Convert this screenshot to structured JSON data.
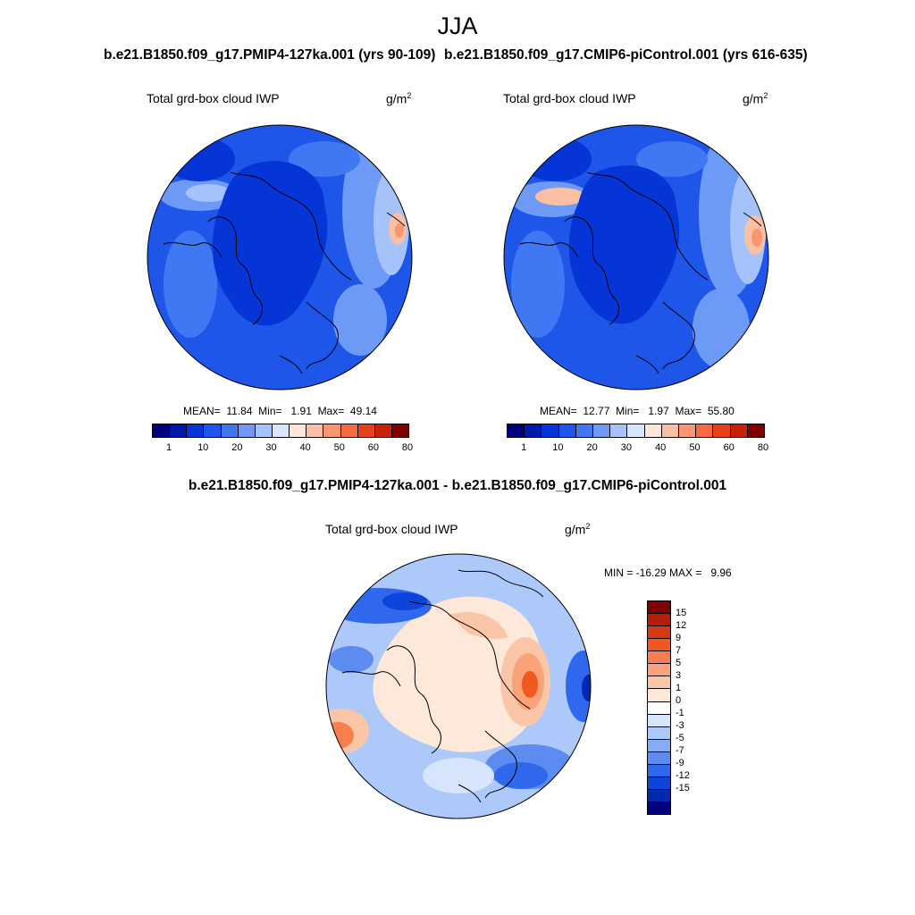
{
  "season": "JJA",
  "panel_left": {
    "case_title": "b.e21.B1850.f09_g17.PMIP4-127ka.001 (yrs 90-109)",
    "variable": "Total grd-box cloud IWP",
    "units": "g/m",
    "units_exp": "2",
    "mean_label": "MEAN=",
    "mean": "11.84",
    "min_label": "Min=",
    "min": "1.91",
    "max_label": "Max=",
    "max": "49.14"
  },
  "panel_right": {
    "case_title": "b.e21.B1850.f09_g17.CMIP6-piControl.001 (yrs 616-635)",
    "variable": "Total grd-box cloud IWP",
    "units": "g/m",
    "units_exp": "2",
    "mean_label": "MEAN=",
    "mean": "12.77",
    "min_label": "Min=",
    "min": "1.97",
    "max_label": "Max=",
    "max": "55.80"
  },
  "panel_diff": {
    "case_title": "b.e21.B1850.f09_g17.PMIP4-127ka.001 - b.e21.B1850.f09_g17.CMIP6-piControl.001",
    "variable": "Total grd-box cloud IWP",
    "units": "g/m",
    "units_exp": "2",
    "minmax": "MIN = -16.29 MAX =   9.96"
  },
  "colorbar_top": {
    "colors": [
      "#00007f",
      "#0019a8",
      "#0535d6",
      "#1e56ea",
      "#3f78f2",
      "#6e9af7",
      "#a6c2fa",
      "#d7e6fd",
      "#fde6d7",
      "#fbbfa3",
      "#f99570",
      "#f56a3f",
      "#e84119",
      "#c9210a",
      "#7f0000"
    ],
    "tick_labels": [
      "1",
      "10",
      "20",
      "30",
      "40",
      "50",
      "60",
      "80"
    ]
  },
  "colorbar_diff": {
    "colors": [
      "#7f0000",
      "#b51e05",
      "#d83a10",
      "#f0591e",
      "#f87f4b",
      "#faa27a",
      "#fbc6a8",
      "#fde8da",
      "#ffffff",
      "#d6e5fc",
      "#adc9f9",
      "#86acf5",
      "#5c8cf0",
      "#2f68ec",
      "#0c44dc",
      "#0029b0",
      "#00007f"
    ],
    "tick_labels": [
      "15",
      "12",
      "9",
      "7",
      "5",
      "3",
      "1",
      "0",
      "-1",
      "-3",
      "-5",
      "-7",
      "-9",
      "-12",
      "-15"
    ]
  }
}
